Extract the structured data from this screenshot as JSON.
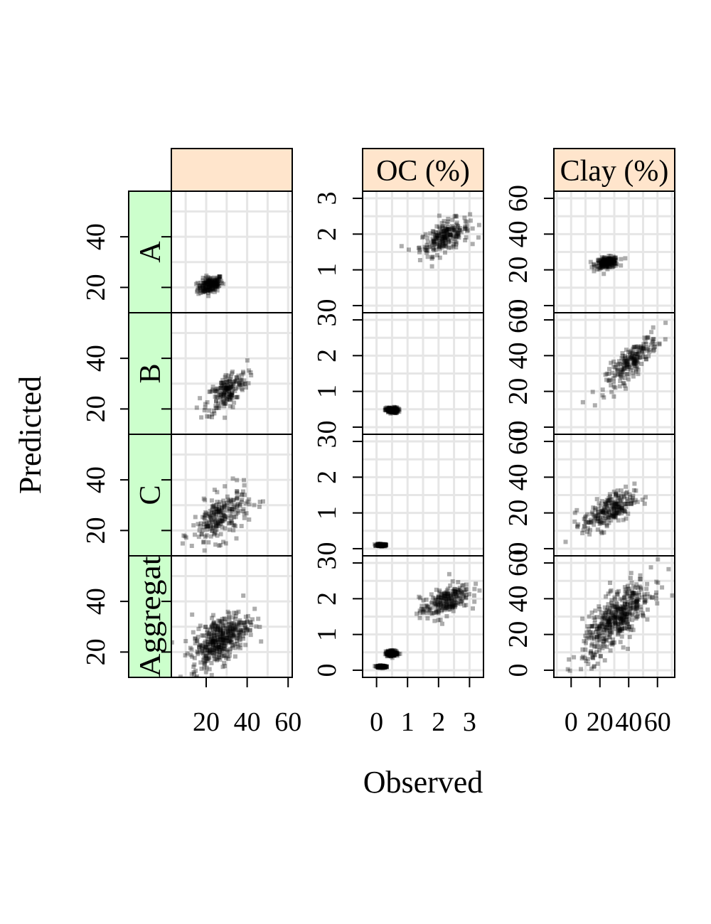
{
  "figure": {
    "xlabel": "Observed",
    "ylabel": "Predicted"
  },
  "colors": {
    "strip_top": "#ffe5cc",
    "strip_side": "#ccffcc",
    "grid": "#e6e6e6",
    "points": "#000000"
  },
  "chart_data": {
    "type": "scatter",
    "layout": "3 columns x 4 rows trellis (lattice) panels, free scales per column",
    "columns": [
      {
        "strip_label": "",
        "x_ticks": [
          20,
          40,
          60
        ],
        "xlim": [
          3,
          62
        ],
        "y_ticks": [
          20,
          40
        ],
        "ylim": [
          10,
          58
        ]
      },
      {
        "strip_label": "OC (%)",
        "x_ticks": [
          0,
          1,
          2,
          3
        ],
        "xlim": [
          -0.45,
          3.45
        ],
        "y_ticks": [
          0,
          1,
          2,
          3
        ],
        "ylim": [
          -0.2,
          3.2
        ]
      },
      {
        "strip_label": "Clay (%)",
        "x_ticks": [
          0,
          20,
          40,
          60
        ],
        "xlim": [
          -12,
          72
        ],
        "y_ticks": [
          0,
          20,
          40,
          60
        ],
        "ylim": [
          -4,
          64
        ]
      }
    ],
    "rows": [
      {
        "strip_label": "A"
      },
      {
        "strip_label": "B"
      },
      {
        "strip_label": "C"
      },
      {
        "strip_label": "Aggregat"
      }
    ],
    "panels": [
      {
        "row": 0,
        "col": 0,
        "clusters": [
          {
            "n": 170,
            "cx": 22,
            "cy": 21,
            "sx": 3,
            "sy": 1.6,
            "slope": 0.2
          }
        ]
      },
      {
        "row": 0,
        "col": 1,
        "clusters": [
          {
            "n": 220,
            "cx": 2.2,
            "cy": 1.92,
            "sx": 0.4,
            "sy": 0.2,
            "slope": 0.35
          }
        ]
      },
      {
        "row": 0,
        "col": 2,
        "clusters": [
          {
            "n": 170,
            "cx": 25,
            "cy": 24,
            "sx": 4,
            "sy": 1.5,
            "slope": 0.1
          }
        ]
      },
      {
        "row": 1,
        "col": 0,
        "clusters": [
          {
            "n": 180,
            "cx": 30,
            "cy": 27,
            "sx": 5,
            "sy": 3.5,
            "slope": 0.5
          }
        ]
      },
      {
        "row": 1,
        "col": 1,
        "clusters": [
          {
            "n": 170,
            "cx": 0.5,
            "cy": 0.47,
            "sx": 0.1,
            "sy": 0.04,
            "slope": 0
          }
        ]
      },
      {
        "row": 1,
        "col": 2,
        "clusters": [
          {
            "n": 200,
            "cx": 42,
            "cy": 37,
            "sx": 9,
            "sy": 4,
            "slope": 0.7
          }
        ]
      },
      {
        "row": 2,
        "col": 0,
        "clusters": [
          {
            "n": 230,
            "cx": 27,
            "cy": 25,
            "sx": 7,
            "sy": 4.5,
            "slope": 0.4
          }
        ]
      },
      {
        "row": 2,
        "col": 1,
        "clusters": [
          {
            "n": 150,
            "cx": 0.15,
            "cy": 0.1,
            "sx": 0.07,
            "sy": 0.015,
            "slope": 0
          }
        ]
      },
      {
        "row": 2,
        "col": 2,
        "clusters": [
          {
            "n": 230,
            "cx": 26,
            "cy": 21,
            "sx": 9,
            "sy": 4.5,
            "slope": 0.35
          }
        ]
      },
      {
        "row": 3,
        "col": 0,
        "clusters": [
          {
            "n": 420,
            "cx": 27,
            "cy": 25,
            "sx": 7,
            "sy": 4.5,
            "slope": 0.45
          }
        ]
      },
      {
        "row": 3,
        "col": 1,
        "clusters": [
          {
            "n": 220,
            "cx": 2.2,
            "cy": 1.92,
            "sx": 0.4,
            "sy": 0.2,
            "slope": 0.35
          },
          {
            "n": 160,
            "cx": 0.5,
            "cy": 0.47,
            "sx": 0.1,
            "sy": 0.04,
            "slope": 0
          },
          {
            "n": 140,
            "cx": 0.15,
            "cy": 0.1,
            "sx": 0.07,
            "sy": 0.015,
            "slope": 0
          }
        ]
      },
      {
        "row": 3,
        "col": 2,
        "clusters": [
          {
            "n": 450,
            "cx": 32,
            "cy": 29,
            "sx": 12,
            "sy": 7,
            "slope": 0.65
          }
        ]
      }
    ]
  }
}
